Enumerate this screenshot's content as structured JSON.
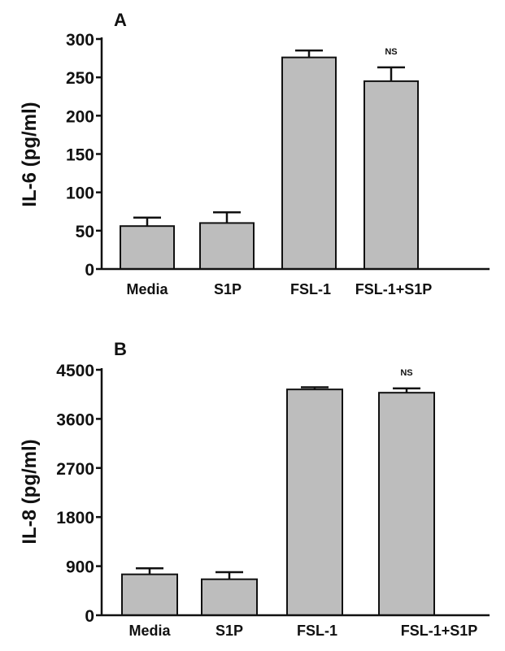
{
  "colors": {
    "bar_fill": "#bdbdbd",
    "stroke": "#111111",
    "background": "#ffffff"
  },
  "chart_data": [
    {
      "type": "bar",
      "panel": "A",
      "ylabel": "IL-6 (pg/ml)",
      "xlabel": "",
      "ylim": [
        0,
        300
      ],
      "yticks": [
        "0",
        "50",
        "100",
        "150",
        "200",
        "250",
        "300"
      ],
      "ytick_values": [
        0,
        50,
        100,
        150,
        200,
        250,
        300
      ],
      "categories": [
        "Media",
        "S1P",
        "FSL-1",
        "FSL-1+S1P"
      ],
      "values": [
        56,
        60,
        276,
        245
      ],
      "errors": [
        11,
        14,
        9,
        18
      ],
      "annotations": [
        "",
        "",
        "",
        "NS"
      ],
      "grid": false
    },
    {
      "type": "bar",
      "panel": "B",
      "ylabel": "IL-8 (pg/ml)",
      "xlabel": "",
      "ylim": [
        0,
        4500
      ],
      "yticks": [
        "0",
        "900",
        "1800",
        "2700",
        "3600",
        "4500"
      ],
      "ytick_values": [
        0,
        900,
        1800,
        2700,
        3600,
        4500
      ],
      "categories": [
        "Media",
        "S1P",
        "FSL-1",
        "FSL-1+S1P"
      ],
      "values": [
        750,
        660,
        4140,
        4080
      ],
      "errors": [
        110,
        130,
        40,
        80
      ],
      "annotations": [
        "",
        "",
        "",
        "NS"
      ],
      "grid": false
    }
  ]
}
